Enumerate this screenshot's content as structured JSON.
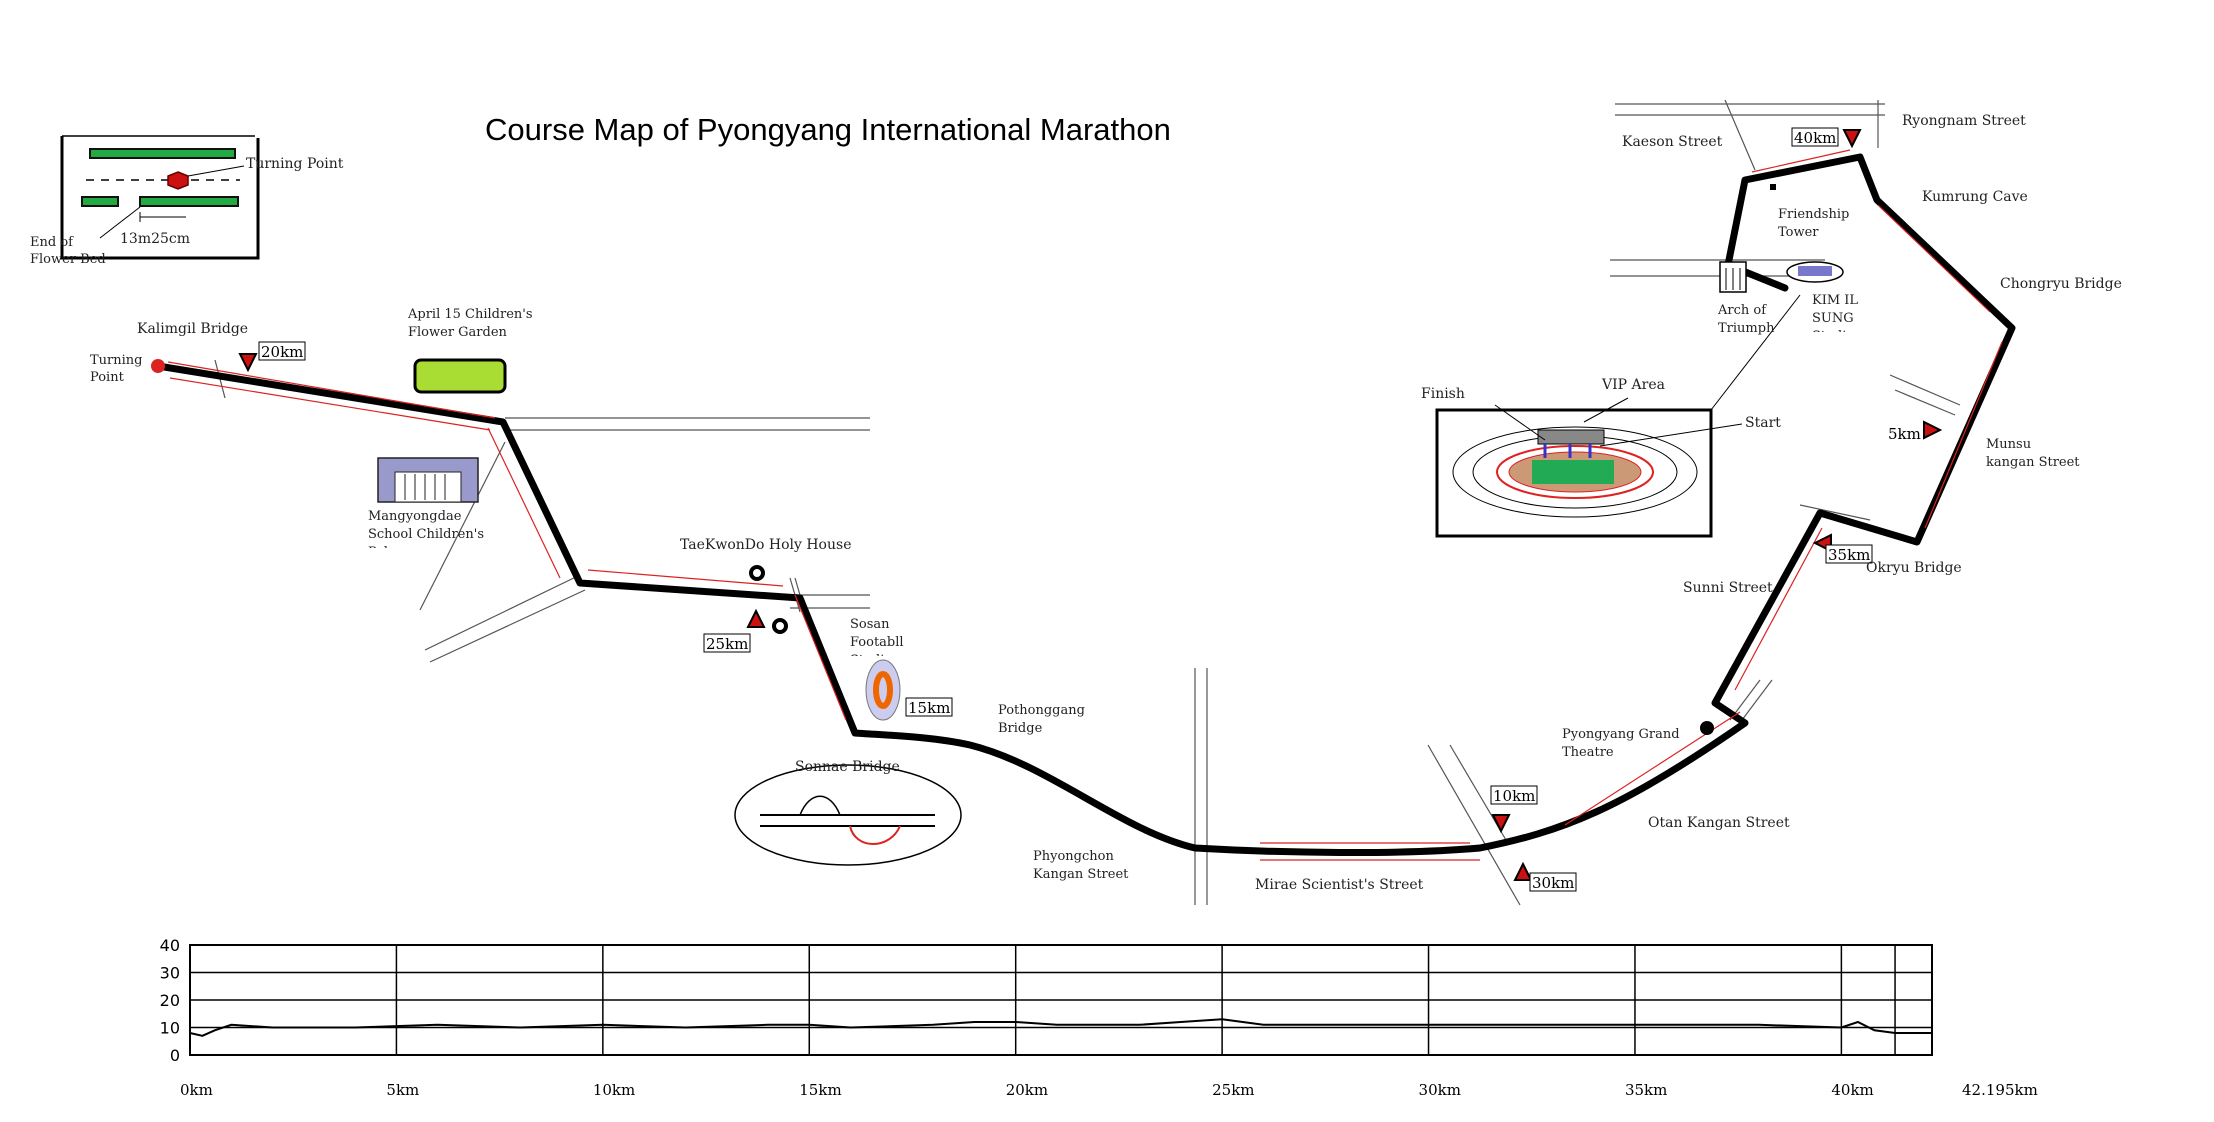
{
  "title": "Course Map of Pyongyang International Marathon",
  "inset": {
    "turning_point": "Turning Point",
    "end_of_flower_bed": "End of Flower Bed",
    "measure": "13m25cm"
  },
  "places": {
    "kalimgil_bridge": "Kalimgil Bridge",
    "turning_point": "Turning Point",
    "april15_garden": "April 15 Children's Flower Garden",
    "mangyongdae_palace": "Mangyongdae School Children's Palace",
    "taekwondo_house": "TaeKwonDo Holy House",
    "sosan_stadium": "Sosan Footabll Stadium",
    "sonnae_bridge": "Sonnae Bridge",
    "pothonggang_bridge": "Pothonggang Bridge",
    "phyongchon_street": "Phyongchon Kangan Street",
    "mirae_street": "Mirae Scientist's Street",
    "pyongyang_theatre": "Pyongyang Grand Theatre",
    "otan_street": "Otan Kangan Street",
    "sunni_street": "Sunni Street",
    "okryu_bridge": "Okryu Bridge",
    "munsu_street": "Munsu kangan Street",
    "chongryu_bridge": "Chongryu Bridge",
    "kumrung_cave": "Kumrung Cave",
    "ryongnam_street": "Ryongnam Street",
    "kaeson_street": "Kaeson Street",
    "friendship_tower": "Friendship Tower",
    "arch_of_triumph": "Arch of Triumph",
    "kim_il_sung_stadium": "KIM IL SUNG Stadium",
    "vip_area": "VIP Area",
    "finish": "Finish",
    "start": "Start"
  },
  "km_markers": {
    "km5": "5km",
    "km10": "10km",
    "km15": "15km",
    "km20": "20km",
    "km25": "25km",
    "km30": "30km",
    "km35": "35km",
    "km40": "40km"
  },
  "colors": {
    "route": "#000000",
    "direction_arrow": "#dd2222",
    "marker": "#cc1111",
    "garden": "#aadd33",
    "flower_bed": "#22aa44",
    "field": "#22aa55"
  },
  "chart_data": {
    "type": "line",
    "title": "",
    "xlabel": "",
    "ylabel": "",
    "x_tick_labels": [
      "0km",
      "5km",
      "10km",
      "15km",
      "20km",
      "25km",
      "30km",
      "35km",
      "40km",
      "42.195km"
    ],
    "y_tick_labels": [
      "40",
      "30",
      "20",
      "10",
      "0"
    ],
    "xlim": [
      0,
      42.195
    ],
    "ylim": [
      0,
      40
    ],
    "grid": true,
    "series": [
      {
        "x": [
          0,
          0.3,
          0.6,
          1,
          2,
          4,
          6,
          8,
          10,
          12,
          14,
          15,
          16,
          18,
          19,
          20,
          21,
          22,
          23,
          24,
          25,
          26,
          28,
          30,
          32,
          34,
          36,
          38,
          40,
          40.4,
          40.8,
          41.3,
          42.195
        ],
        "values": [
          8,
          7,
          9,
          11,
          10,
          10,
          11,
          10,
          11,
          10,
          11,
          11,
          10,
          11,
          12,
          12,
          11,
          11,
          11,
          12,
          13,
          11,
          11,
          11,
          11,
          11,
          11,
          11,
          10,
          12,
          9,
          8,
          8
        ]
      }
    ]
  }
}
